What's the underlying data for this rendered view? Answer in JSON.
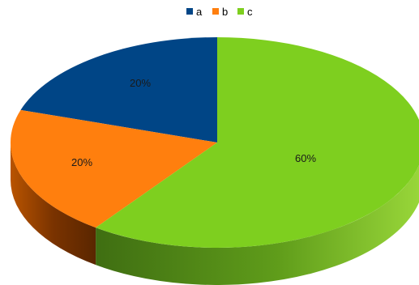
{
  "chart_data": {
    "type": "pie",
    "style": "3d",
    "legend_position": "top",
    "categories": [
      "a",
      "b",
      "c"
    ],
    "values": [
      20,
      20,
      60
    ],
    "labels": [
      "20%",
      "20%",
      "60%"
    ],
    "colors": [
      "#004586",
      "#ff7f0e",
      "#7ecf1f"
    ]
  }
}
